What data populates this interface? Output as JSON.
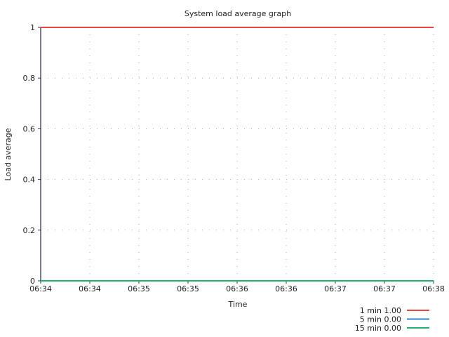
{
  "chart_data": {
    "type": "line",
    "title": "System load average graph",
    "xlabel": "Time",
    "ylabel": "Load average",
    "x": [
      "06:34",
      "06:34",
      "06:35",
      "06:35",
      "06:36",
      "06:36",
      "06:37",
      "06:37",
      "06:38"
    ],
    "ylim": [
      0,
      1
    ],
    "yticks": [
      "0",
      "0.2",
      "0.4",
      "0.6",
      "0.8",
      "1"
    ],
    "grid": true,
    "legend_position": "bottom-right",
    "series": [
      {
        "name": "1 min 1.00",
        "color": "#e8473c",
        "values": [
          1,
          1,
          1,
          1,
          1,
          1,
          1,
          1,
          1
        ]
      },
      {
        "name": "5 min 0.00",
        "color": "#2e86d0",
        "values": [
          0,
          0,
          0,
          0,
          0,
          0,
          0,
          0,
          0
        ]
      },
      {
        "name": "15 min 0.00",
        "color": "#23b06b",
        "values": [
          0,
          0,
          0,
          0,
          0,
          0,
          0,
          0,
          0
        ]
      }
    ]
  }
}
